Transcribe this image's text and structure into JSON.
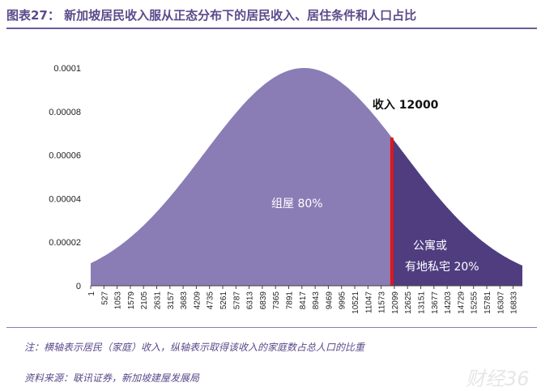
{
  "title": "图表27：  新加坡居民收入服从正态分布下的居民收入、居住条件和人口占比",
  "note": "注：横轴表示居民（家庭）收入，纵轴表示取得该收入的家庭数占总人口的比重",
  "source": "资料来源：联讯证券，新加坡建屋发展局",
  "watermark": "财经36",
  "colors": {
    "left_fill": "#8a7db5",
    "right_fill": "#4f3d80",
    "marker": "#e0161b",
    "title": "#5b4a8a"
  },
  "chart_data": {
    "type": "area",
    "title": "",
    "xlabel": "",
    "ylabel": "",
    "x_ticks": [
      "1",
      "527",
      "1053",
      "1579",
      "2105",
      "2631",
      "3157",
      "3683",
      "4209",
      "4735",
      "5261",
      "5787",
      "6313",
      "6839",
      "7365",
      "7891",
      "8417",
      "8943",
      "9469",
      "9995",
      "10521",
      "11047",
      "11573",
      "12099",
      "12625",
      "13151",
      "13677",
      "14203",
      "14729",
      "15255",
      "15781",
      "16307",
      "16833"
    ],
    "y_ticks": [
      "0",
      "0.00002",
      "0.00004",
      "0.00006",
      "0.00008",
      "0.0001"
    ],
    "ylim": [
      0,
      0.0001
    ],
    "xlim": [
      1,
      17200
    ],
    "distribution": {
      "kind": "normal",
      "mean": 8500,
      "sd": 3990
    },
    "threshold": {
      "x": 12000,
      "label": "收入 12000"
    },
    "regions": [
      {
        "name": "组屋",
        "share": "80%",
        "label": "组屋 80%"
      },
      {
        "name": "公寓或有地私宅",
        "share": "20%",
        "label_line1": "公寓或",
        "label_line2": "有地私宅 20%"
      }
    ]
  }
}
